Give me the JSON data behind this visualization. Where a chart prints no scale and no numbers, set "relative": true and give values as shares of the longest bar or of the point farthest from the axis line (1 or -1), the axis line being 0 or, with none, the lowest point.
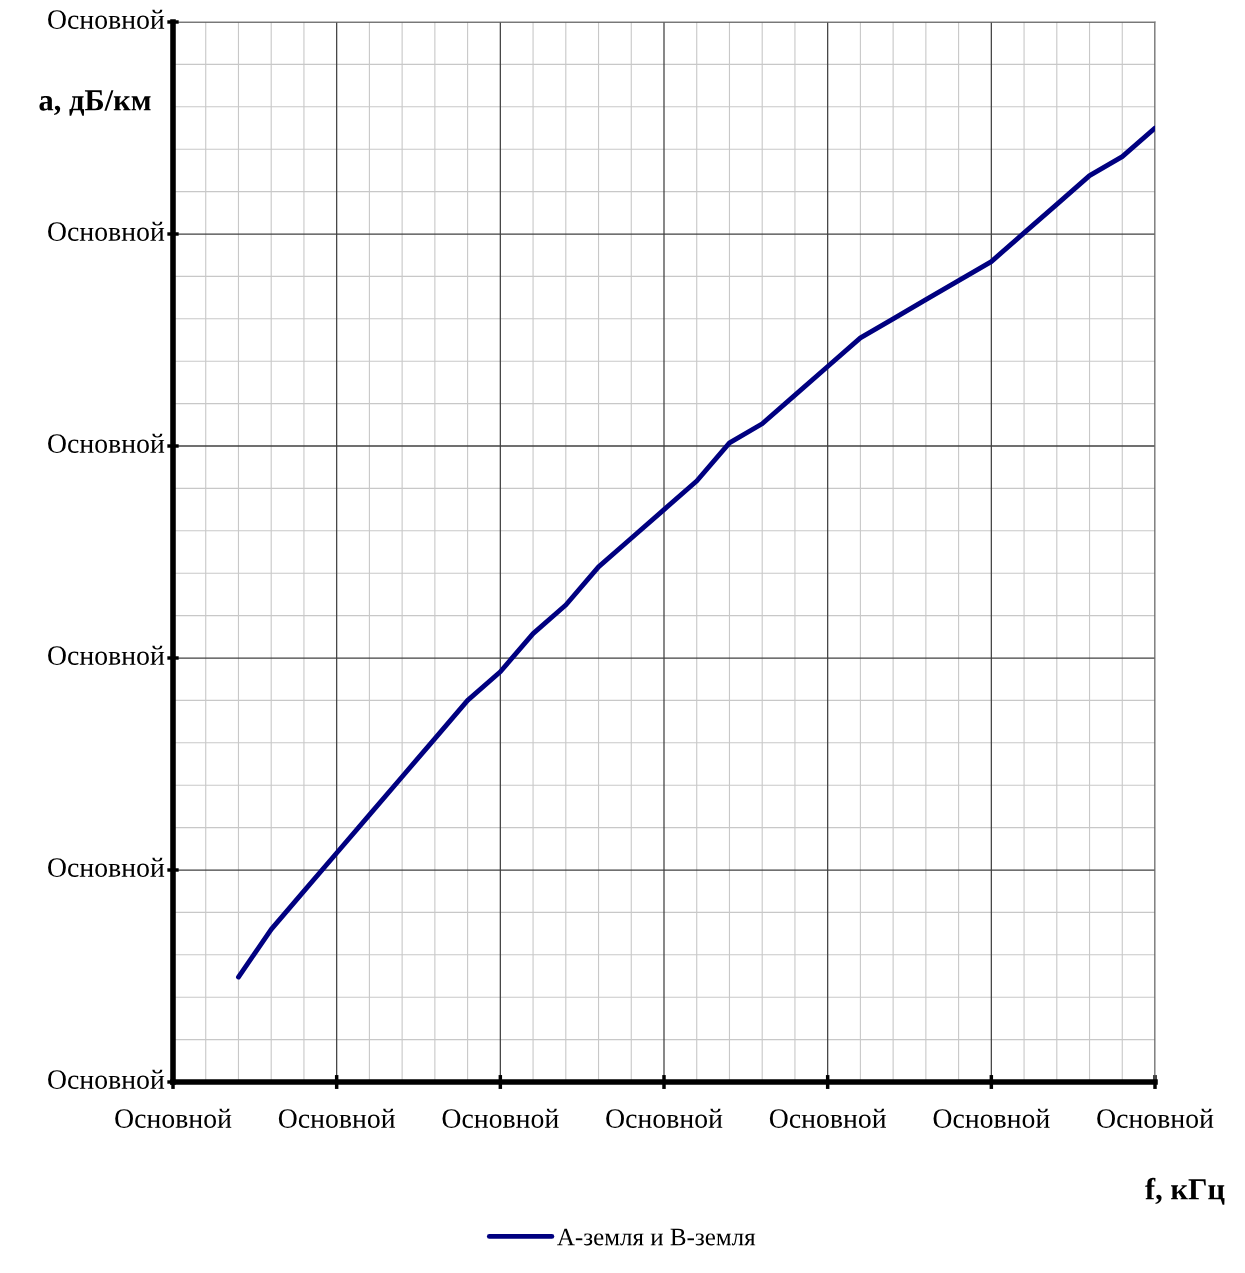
{
  "chart_data": {
    "type": "line",
    "relative": true,
    "xlabel": "f, кГц",
    "ylabel": "a, дБ/км",
    "categories": [
      "Основной",
      null,
      null,
      null,
      null,
      "Основной",
      null,
      null,
      null,
      null,
      "Основной",
      null,
      null,
      null,
      null,
      "Основной",
      null,
      null,
      null,
      null,
      "Основной",
      null,
      null,
      null,
      null,
      "Основной",
      null,
      null,
      null,
      null,
      "Основной"
    ],
    "annotations": [
      "Основной",
      "Основной",
      "Основной",
      "Основной",
      "Основной",
      "Основной"
    ],
    "grid": true,
    "legend": "bottom",
    "marker": "none",
    "line_style": "solid",
    "series": [
      {
        "name": "А-земля и В-земля",
        "color": "#000080",
        "values": [
          null,
          null,
          0.11,
          0.16,
          0.2,
          0.24,
          0.28,
          0.32,
          0.36,
          0.4,
          0.43,
          0.47,
          0.5,
          0.54,
          0.57,
          0.6,
          0.63,
          0.67,
          0.69,
          0.72,
          0.75,
          0.78,
          0.8,
          0.82,
          0.84,
          0.86,
          0.89,
          0.92,
          0.95,
          0.97,
          1.0
        ]
      }
    ]
  }
}
